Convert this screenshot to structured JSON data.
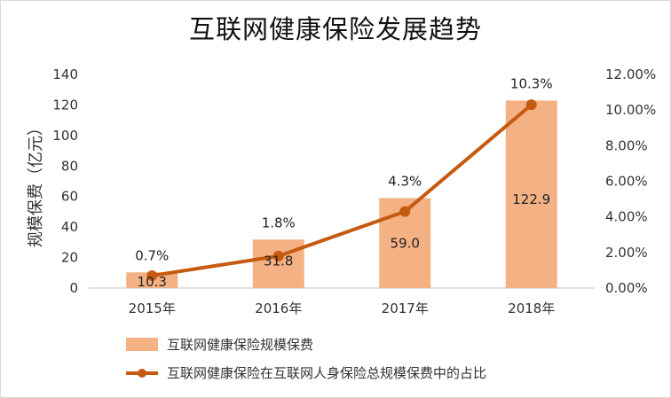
{
  "chart_data": {
    "type": "bar",
    "title": "互联网健康保险发展趋势",
    "categories": [
      "2015年",
      "2016年",
      "2017年",
      "2018年"
    ],
    "ylabel": "规模保费（亿元）",
    "ylim": [
      0,
      140
    ],
    "yticks": [
      "0",
      "20",
      "40",
      "60",
      "80",
      "100",
      "120",
      "140"
    ],
    "y2lim": [
      0,
      12
    ],
    "y2ticks": [
      "0.00%",
      "2.00%",
      "4.00%",
      "6.00%",
      "8.00%",
      "10.00%",
      "12.00%"
    ],
    "series": [
      {
        "name": "互联网健康保险规模保费",
        "type": "bar",
        "axis": "left",
        "values": [
          10.3,
          31.8,
          59.0,
          122.9
        ],
        "labels": [
          "10.3",
          "31.8",
          "59.0",
          "122.9"
        ],
        "color": "#F4B183"
      },
      {
        "name": "互联网健康保险在互联网人身保险总规模保费中的占比",
        "type": "line",
        "axis": "right",
        "values": [
          0.7,
          1.8,
          4.3,
          10.3
        ],
        "labels": [
          "0.7%",
          "1.8%",
          "4.3%",
          "10.3%"
        ],
        "color": "#C55A11"
      }
    ],
    "legend": "bottom-left",
    "grid": false
  }
}
